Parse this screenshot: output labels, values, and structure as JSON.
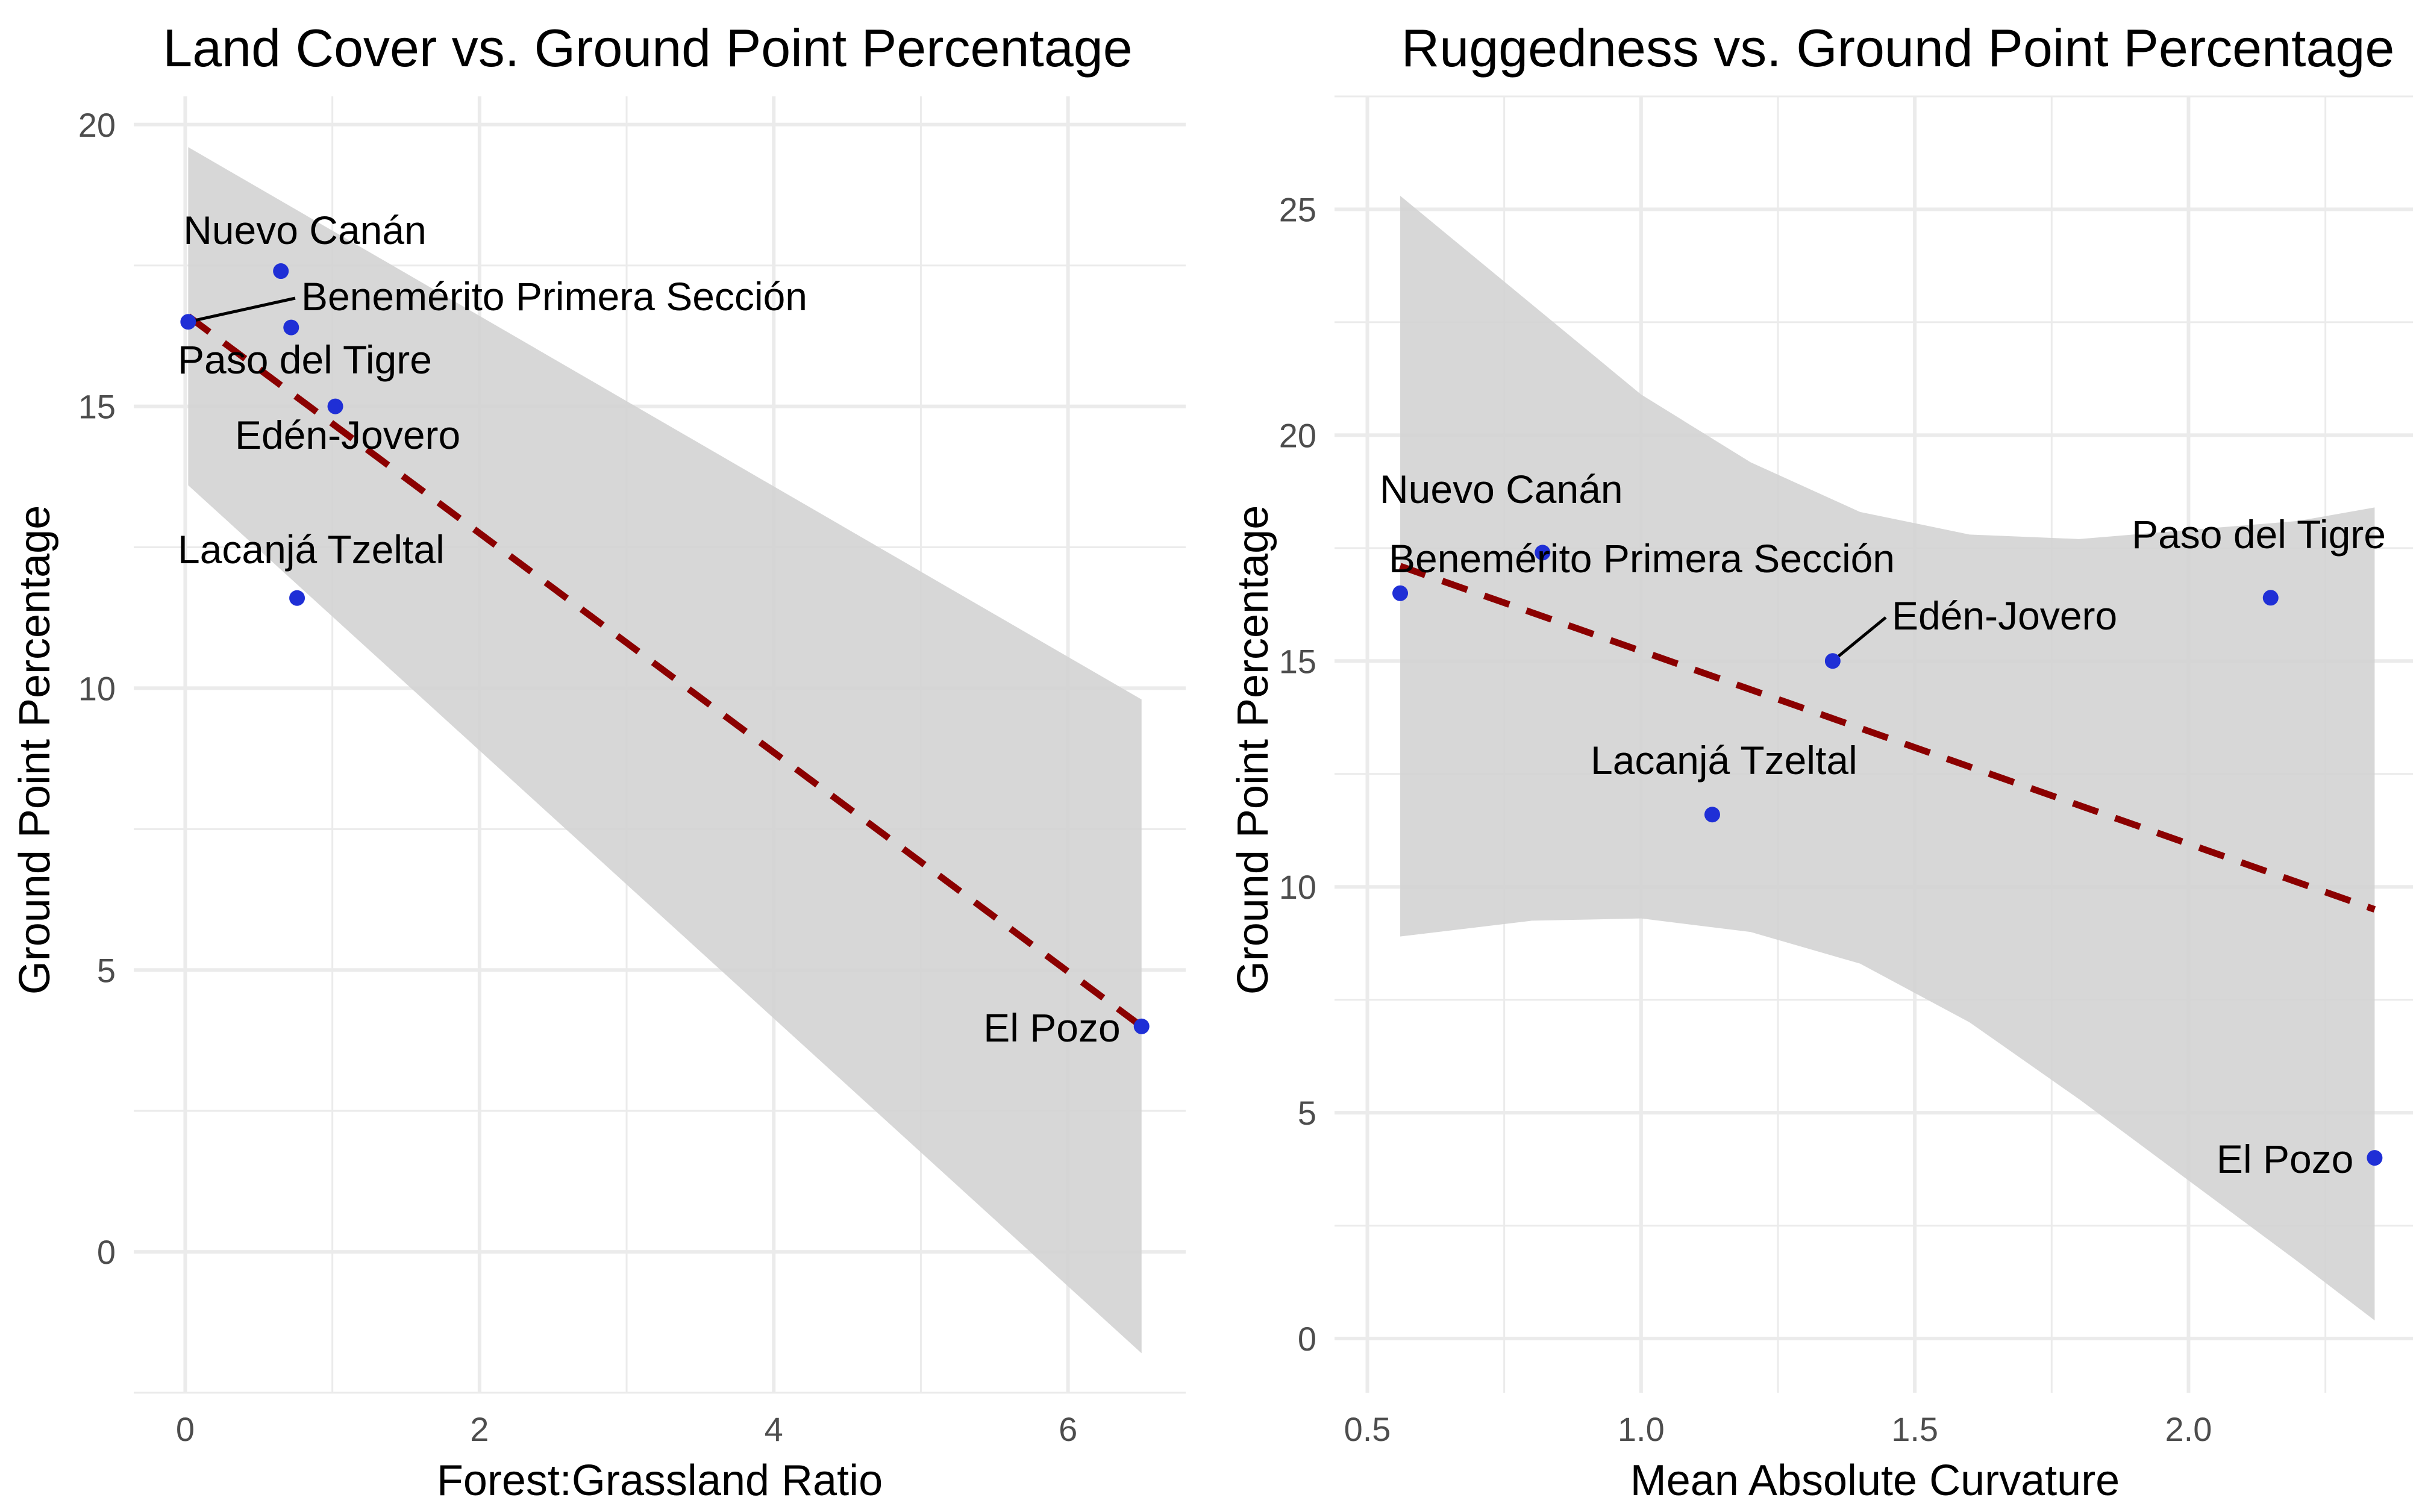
{
  "colors": {
    "point": "#1f2fd6",
    "fit_line": "#8b0000",
    "ribbon": "#d3d3d3",
    "grid": "#ebebeb",
    "text": "#000000",
    "tick_text": "#4d4d4d"
  },
  "chart_data": [
    {
      "type": "scatter",
      "title": "Land Cover vs. Ground Point Percentage",
      "xlabel": "Forest:Grassland Ratio",
      "ylabel": "Ground Point Percentage",
      "xlim": [
        -0.35,
        6.8
      ],
      "ylim": [
        -2.5,
        20.5
      ],
      "x_ticks": [
        0,
        2,
        4,
        6
      ],
      "x_tick_labels": [
        "0",
        "2",
        "4",
        "6"
      ],
      "y_ticks": [
        0,
        5,
        10,
        15,
        20
      ],
      "y_tick_labels": [
        "0",
        "5",
        "10",
        "15",
        "20"
      ],
      "grid": true,
      "points": [
        {
          "label": "Nuevo Canán",
          "x": 0.65,
          "y": 17.4
        },
        {
          "label": "Benemérito Primera Sección",
          "x": 0.02,
          "y": 16.5
        },
        {
          "label": "Paso del Tigre",
          "x": 0.72,
          "y": 16.4
        },
        {
          "label": "Edén-Jovero",
          "x": 1.02,
          "y": 15.0
        },
        {
          "label": "Lacanjá Tzeltal",
          "x": 0.76,
          "y": 11.6
        },
        {
          "label": "El Pozo",
          "x": 6.5,
          "y": 4.0
        }
      ],
      "trend_line": {
        "style": "dashed",
        "x": [
          0.02,
          6.5
        ],
        "y": [
          16.6,
          4.0
        ]
      },
      "confidence_band": {
        "x": [
          0.02,
          6.5
        ],
        "lower": [
          13.6,
          -1.8
        ],
        "upper": [
          19.6,
          9.8
        ]
      }
    },
    {
      "type": "scatter",
      "title": "Ruggedness vs. Ground Point Percentage",
      "xlabel": "Mean Absolute Curvature",
      "ylabel": "Ground Point Percentage",
      "xlim": [
        0.44,
        2.41
      ],
      "ylim": [
        -1.2,
        27.5
      ],
      "x_ticks": [
        0.5,
        1.0,
        1.5,
        2.0
      ],
      "x_tick_labels": [
        "0.5",
        "1.0",
        "1.5",
        "2.0"
      ],
      "y_ticks": [
        0,
        5,
        10,
        15,
        20,
        25
      ],
      "y_tick_labels": [
        "0",
        "5",
        "10",
        "15",
        "20",
        "25"
      ],
      "grid": true,
      "points": [
        {
          "label": "Nuevo Canán",
          "x": 0.82,
          "y": 17.4
        },
        {
          "label": "Benemérito Primera Sección",
          "x": 0.56,
          "y": 16.5
        },
        {
          "label": "Paso del Tigre",
          "x": 2.15,
          "y": 16.4
        },
        {
          "label": "Edén-Jovero",
          "x": 1.35,
          "y": 15.0
        },
        {
          "label": "Lacanjá Tzeltal",
          "x": 1.13,
          "y": 11.6
        },
        {
          "label": "El Pozo",
          "x": 2.34,
          "y": 4.0
        }
      ],
      "trend_line": {
        "style": "dashed",
        "x": [
          0.56,
          2.34
        ],
        "y": [
          17.1,
          9.5
        ]
      },
      "confidence_band": {
        "x": [
          0.56,
          0.8,
          1.0,
          1.2,
          1.4,
          1.6,
          1.8,
          2.0,
          2.2,
          2.34
        ],
        "lower": [
          8.9,
          9.25,
          9.3,
          9.0,
          8.3,
          7.0,
          5.3,
          3.5,
          1.7,
          0.4
        ],
        "upper": [
          25.3,
          22.9,
          20.9,
          19.4,
          18.3,
          17.8,
          17.7,
          17.9,
          18.1,
          18.4
        ]
      }
    }
  ]
}
